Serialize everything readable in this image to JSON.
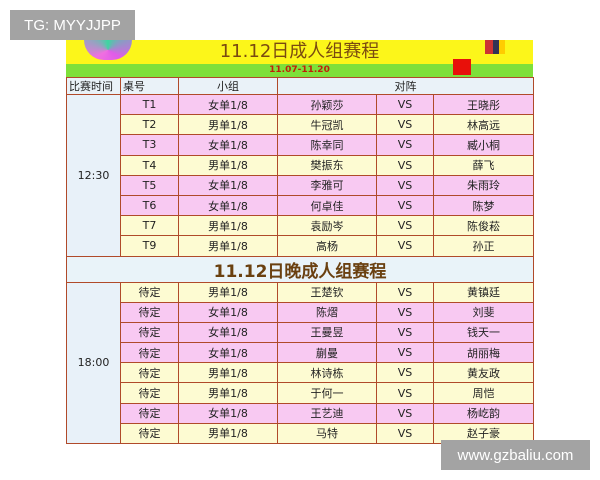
{
  "watermarks": {
    "top_left": "TG: MYYJJPP",
    "bottom_right": "www.gzbaliu.com"
  },
  "title": "11.12日成人组赛程",
  "date_range": "11.07-11.20",
  "columns": {
    "time": "比赛时间",
    "table": "桌号",
    "group": "小组",
    "matchup": "对阵"
  },
  "section1": {
    "time": "12:30",
    "rows": [
      {
        "table": "T1",
        "group": "女单1/8",
        "p1": "孙颖莎",
        "vs": "VS",
        "p2": "王晓彤",
        "type": "f"
      },
      {
        "table": "T2",
        "group": "男单1/8",
        "p1": "牛冠凯",
        "vs": "VS",
        "p2": "林高远",
        "type": "m"
      },
      {
        "table": "T3",
        "group": "女单1/8",
        "p1": "陈幸同",
        "vs": "VS",
        "p2": "臧小桐",
        "type": "f"
      },
      {
        "table": "T4",
        "group": "男单1/8",
        "p1": "樊振东",
        "vs": "VS",
        "p2": "薛飞",
        "type": "m"
      },
      {
        "table": "T5",
        "group": "女单1/8",
        "p1": "李雅可",
        "vs": "VS",
        "p2": "朱雨玲",
        "type": "f"
      },
      {
        "table": "T6",
        "group": "女单1/8",
        "p1": "何卓佳",
        "vs": "VS",
        "p2": "陈梦",
        "type": "f"
      },
      {
        "table": "T7",
        "group": "男单1/8",
        "p1": "袁励岑",
        "vs": "VS",
        "p2": "陈俊菘",
        "type": "m"
      },
      {
        "table": "T9",
        "group": "男单1/8",
        "p1": "高杨",
        "vs": "VS",
        "p2": "孙正",
        "type": "m"
      }
    ]
  },
  "section2": {
    "title": "11.12日晚成人组赛程",
    "time": "18:00",
    "rows": [
      {
        "table": "待定",
        "group": "男单1/8",
        "p1": "王楚钦",
        "vs": "VS",
        "p2": "黄镇廷",
        "type": "m"
      },
      {
        "table": "待定",
        "group": "女单1/8",
        "p1": "陈熠",
        "vs": "VS",
        "p2": "刘斐",
        "type": "f"
      },
      {
        "table": "待定",
        "group": "女单1/8",
        "p1": "王曼昱",
        "vs": "VS",
        "p2": "钱天一",
        "type": "f"
      },
      {
        "table": "待定",
        "group": "女单1/8",
        "p1": "蒯曼",
        "vs": "VS",
        "p2": "胡丽梅",
        "type": "f"
      },
      {
        "table": "待定",
        "group": "男单1/8",
        "p1": "林诗栋",
        "vs": "VS",
        "p2": "黄友政",
        "type": "m"
      },
      {
        "table": "待定",
        "group": "男单1/8",
        "p1": "于何一",
        "vs": "VS",
        "p2": "周恺",
        "type": "m"
      },
      {
        "table": "待定",
        "group": "女单1/8",
        "p1": "王艺迪",
        "vs": "VS",
        "p2": "杨屹韵",
        "type": "f"
      },
      {
        "table": "待定",
        "group": "男单1/8",
        "p1": "马特",
        "vs": "VS",
        "p2": "赵子豪",
        "type": "m"
      }
    ]
  },
  "colors": {
    "women_row": "#f8c9f2",
    "men_row": "#fdfbd2",
    "border": "#b04a2a",
    "header": "#fcf61a",
    "bar": "#7ee03a"
  }
}
